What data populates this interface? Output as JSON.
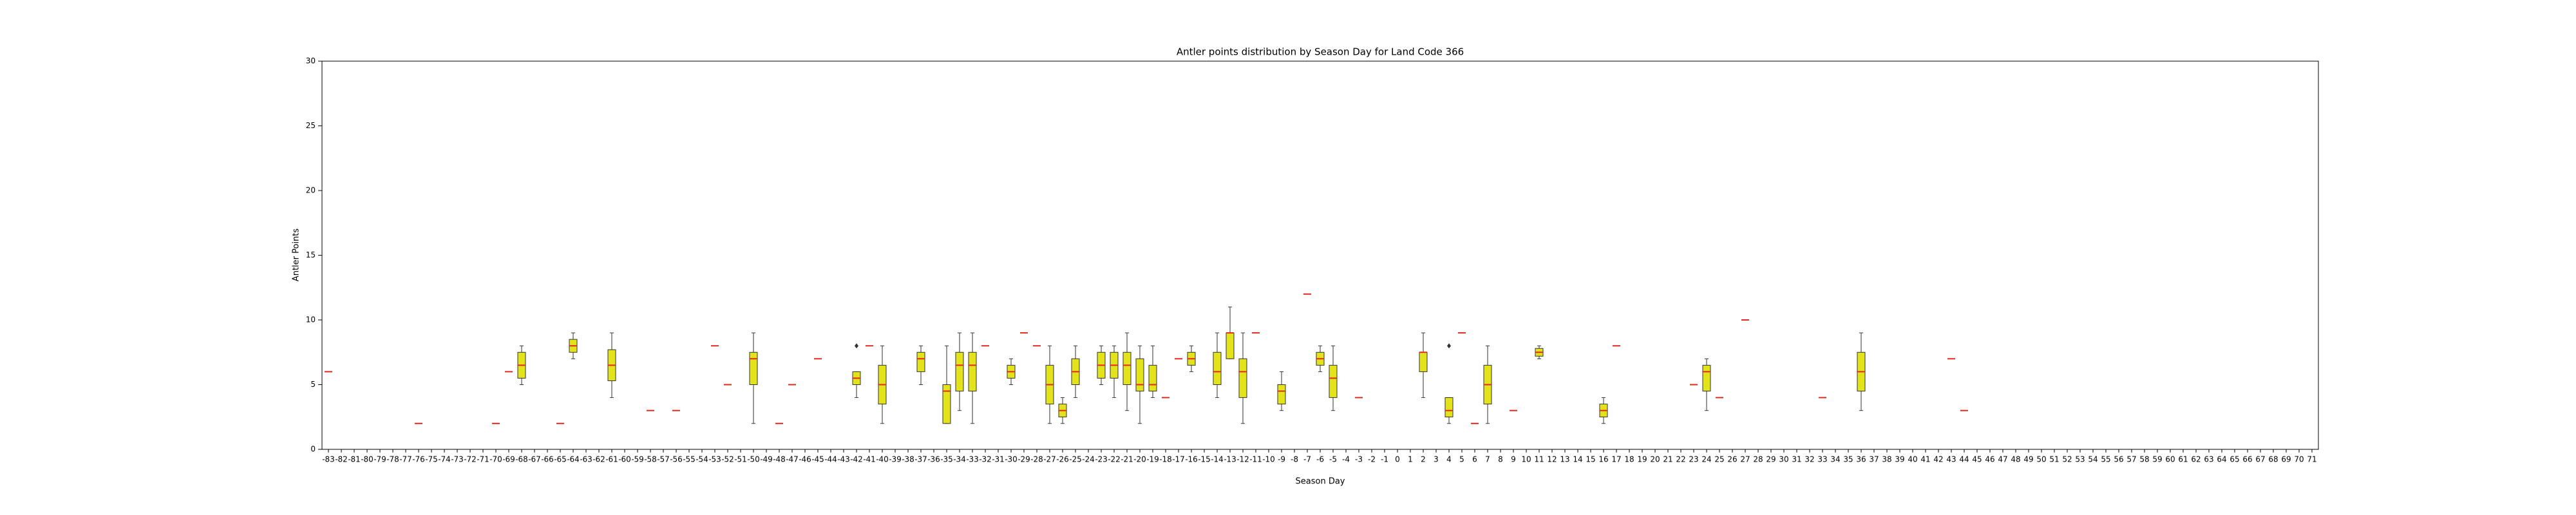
{
  "chart_data": {
    "type": "box",
    "title": "Antler points distribution by Season Day for Land Code 366",
    "x_label": "Season Day",
    "y_label": "Antler Points",
    "ylim": [
      0,
      30
    ],
    "yticks": [
      0,
      5,
      10,
      15,
      20,
      25,
      30
    ],
    "box_color": "#e3e31c",
    "median_color": "#e02a1e",
    "edge_color": "#333333",
    "categories": [
      -83,
      -82,
      -81,
      -80,
      -79,
      -78,
      -77,
      -76,
      -75,
      -74,
      -73,
      -72,
      -71,
      -70,
      -69,
      -68,
      -67,
      -66,
      -65,
      -64,
      -63,
      -62,
      -61,
      -60,
      -59,
      -58,
      -57,
      -56,
      -55,
      -54,
      -53,
      -52,
      -51,
      -50,
      -49,
      -48,
      -47,
      -46,
      -45,
      -44,
      -43,
      -42,
      -41,
      -40,
      -39,
      -38,
      -37,
      -36,
      -35,
      -34,
      -33,
      -32,
      -31,
      -30,
      -29,
      -28,
      -27,
      -26,
      -25,
      -24,
      -23,
      -22,
      -21,
      -20,
      -19,
      -18,
      -17,
      -16,
      -15,
      -14,
      -13,
      -12,
      -11,
      -10,
      -9,
      -8,
      -7,
      -6,
      -5,
      -4,
      -3,
      -2,
      -1,
      0,
      1,
      2,
      3,
      4,
      5,
      6,
      7,
      8,
      9,
      10,
      11,
      12,
      13,
      14,
      15,
      16,
      17,
      18,
      19,
      20,
      21,
      22,
      23,
      24,
      25,
      26,
      27,
      28,
      29,
      30,
      31,
      32,
      33,
      34,
      35,
      36,
      37,
      38,
      39,
      40,
      41,
      42,
      43,
      44,
      45,
      46,
      47,
      48,
      49,
      50,
      51,
      52,
      53,
      54,
      55,
      56,
      57,
      58,
      59,
      60,
      61,
      62,
      63,
      64,
      65,
      66,
      67,
      68,
      69,
      70,
      71
    ],
    "boxes": [
      {
        "stats": [
          6,
          6,
          6,
          6,
          6
        ]
      },
      null,
      null,
      null,
      null,
      null,
      null,
      {
        "stats": [
          2,
          2,
          2,
          2,
          2
        ]
      },
      null,
      null,
      null,
      null,
      null,
      {
        "stats": [
          2,
          2,
          2,
          2,
          2
        ]
      },
      {
        "stats": [
          6,
          6,
          6,
          6,
          6
        ]
      },
      {
        "stats": [
          5,
          5.5,
          6.5,
          7.5,
          8
        ]
      },
      null,
      null,
      {
        "stats": [
          2,
          2,
          2,
          2,
          2
        ]
      },
      {
        "stats": [
          7,
          7.5,
          8,
          8.5,
          9
        ]
      },
      null,
      null,
      {
        "stats": [
          4,
          5.3,
          6.5,
          7.7,
          9
        ]
      },
      null,
      null,
      {
        "stats": [
          3,
          3,
          3,
          3,
          3
        ]
      },
      null,
      {
        "stats": [
          3,
          3,
          3,
          3,
          3
        ]
      },
      null,
      null,
      {
        "stats": [
          8,
          8,
          8,
          8,
          8
        ]
      },
      {
        "stats": [
          5,
          5,
          5,
          5,
          5
        ]
      },
      null,
      {
        "stats": [
          2,
          5,
          7,
          7.5,
          9
        ]
      },
      null,
      {
        "stats": [
          2,
          2,
          2,
          2,
          2
        ]
      },
      {
        "stats": [
          5,
          5,
          5,
          5,
          5
        ]
      },
      null,
      {
        "stats": [
          7,
          7,
          7,
          7,
          7
        ]
      },
      null,
      null,
      {
        "stats": [
          4,
          5,
          5.5,
          6,
          6
        ],
        "fliers": [
          8
        ]
      },
      {
        "stats": [
          8,
          8,
          8,
          8,
          8
        ]
      },
      {
        "stats": [
          2,
          3.5,
          5,
          6.5,
          8
        ]
      },
      null,
      null,
      {
        "stats": [
          5,
          6,
          7,
          7.5,
          8
        ]
      },
      null,
      {
        "stats": [
          2,
          2,
          4.5,
          5,
          8
        ]
      },
      {
        "stats": [
          3,
          4.5,
          6.5,
          7.5,
          9
        ]
      },
      {
        "stats": [
          2,
          4.5,
          6.5,
          7.5,
          9
        ]
      },
      {
        "stats": [
          8,
          8,
          8,
          8,
          8
        ]
      },
      null,
      {
        "stats": [
          5,
          5.5,
          6,
          6.5,
          7
        ]
      },
      {
        "stats": [
          9,
          9,
          9,
          9,
          9
        ]
      },
      {
        "stats": [
          8,
          8,
          8,
          8,
          8
        ]
      },
      {
        "stats": [
          2,
          3.5,
          5,
          6.5,
          8
        ]
      },
      {
        "stats": [
          2,
          2.5,
          3,
          3.5,
          4
        ]
      },
      {
        "stats": [
          4,
          5,
          6,
          7,
          8
        ]
      },
      null,
      {
        "stats": [
          5,
          5.5,
          6.5,
          7.5,
          8
        ]
      },
      {
        "stats": [
          4,
          5.5,
          6.5,
          7.5,
          8
        ]
      },
      {
        "stats": [
          3,
          5,
          6.5,
          7.5,
          9
        ]
      },
      {
        "stats": [
          2,
          4.5,
          5,
          7,
          8
        ]
      },
      {
        "stats": [
          4,
          4.5,
          5,
          6.5,
          8
        ]
      },
      {
        "stats": [
          4,
          4,
          4,
          4,
          4
        ]
      },
      {
        "stats": [
          7,
          7,
          7,
          7,
          7
        ]
      },
      {
        "stats": [
          6,
          6.5,
          7,
          7.5,
          8
        ]
      },
      null,
      {
        "stats": [
          4,
          5,
          6,
          7.5,
          9
        ]
      },
      {
        "stats": [
          7,
          7,
          9,
          9,
          11
        ]
      },
      {
        "stats": [
          2,
          4,
          6,
          7,
          9
        ]
      },
      {
        "stats": [
          9,
          9,
          9,
          9,
          9
        ]
      },
      null,
      {
        "stats": [
          3,
          3.5,
          4.5,
          5,
          6
        ]
      },
      null,
      {
        "stats": [
          12,
          12,
          12,
          12,
          12
        ]
      },
      {
        "stats": [
          6,
          6.5,
          7,
          7.5,
          8
        ]
      },
      {
        "stats": [
          3,
          4,
          5.5,
          6.5,
          8
        ]
      },
      null,
      {
        "stats": [
          4,
          4,
          4,
          4,
          4
        ]
      },
      null,
      null,
      null,
      null,
      {
        "stats": [
          4,
          6,
          7.5,
          7.5,
          9
        ]
      },
      null,
      {
        "stats": [
          2,
          2.5,
          3,
          4,
          4
        ],
        "fliers": [
          8
        ]
      },
      {
        "stats": [
          9,
          9,
          9,
          9,
          9
        ]
      },
      {
        "stats": [
          2,
          2,
          2,
          2,
          2
        ]
      },
      {
        "stats": [
          2,
          3.5,
          5,
          6.5,
          8
        ]
      },
      null,
      {
        "stats": [
          3,
          3,
          3,
          3,
          3
        ]
      },
      null,
      {
        "stats": [
          7,
          7.2,
          7.5,
          7.8,
          8
        ]
      },
      null,
      null,
      null,
      null,
      {
        "stats": [
          2,
          2.5,
          3,
          3.5,
          4
        ]
      },
      {
        "stats": [
          8,
          8,
          8,
          8,
          8
        ]
      },
      null,
      null,
      null,
      null,
      null,
      {
        "stats": [
          5,
          5,
          5,
          5,
          5
        ]
      },
      {
        "stats": [
          3,
          4.5,
          6,
          6.5,
          7
        ]
      },
      {
        "stats": [
          4,
          4,
          4,
          4,
          4
        ]
      },
      null,
      {
        "stats": [
          10,
          10,
          10,
          10,
          10
        ]
      },
      null,
      null,
      null,
      null,
      null,
      {
        "stats": [
          4,
          4,
          4,
          4,
          4
        ]
      },
      null,
      null,
      {
        "stats": [
          3,
          4.5,
          6,
          7.5,
          9
        ]
      },
      null,
      null,
      null,
      null,
      null,
      null,
      {
        "stats": [
          7,
          7,
          7,
          7,
          7
        ]
      },
      {
        "stats": [
          3,
          3,
          3,
          3,
          3
        ]
      },
      null,
      null,
      null,
      null,
      null,
      null,
      null,
      null,
      null,
      null,
      null,
      null,
      null,
      null,
      null,
      null,
      null,
      null,
      null,
      null,
      null,
      null,
      null,
      null,
      null,
      null,
      null
    ]
  }
}
